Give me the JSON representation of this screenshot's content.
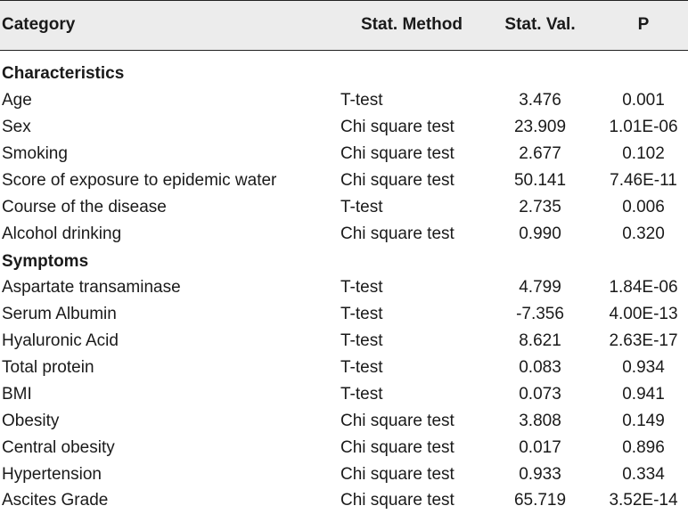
{
  "header": {
    "category": "Category",
    "method": "Stat. Method",
    "value": "Stat. Val.",
    "p": "P"
  },
  "sections": [
    {
      "title": "Characteristics",
      "rows": [
        {
          "category": "Age",
          "method": "T-test",
          "value": "3.476",
          "p": "0.001"
        },
        {
          "category": "Sex",
          "method": "Chi square test",
          "value": "23.909",
          "p": "1.01E-06"
        },
        {
          "category": "Smoking",
          "method": "Chi square test",
          "value": "2.677",
          "p": "0.102"
        },
        {
          "category": "Score of exposure to epidemic water",
          "method": "Chi square test",
          "value": "50.141",
          "p": "7.46E-11"
        },
        {
          "category": "Course of the disease",
          "method": "T-test",
          "value": "2.735",
          "p": "0.006"
        },
        {
          "category": "Alcohol drinking",
          "method": "Chi square test",
          "value": "0.990",
          "p": "0.320"
        }
      ]
    },
    {
      "title": "Symptoms",
      "rows": [
        {
          "category": "Aspartate transaminase",
          "method": "T-test",
          "value": "4.799",
          "p": "1.84E-06"
        },
        {
          "category": "Serum Albumin",
          "method": "T-test",
          "value": "-7.356",
          "p": "4.00E-13"
        },
        {
          "category": "Hyaluronic Acid",
          "method": "T-test",
          "value": "8.621",
          "p": "2.63E-17"
        },
        {
          "category": "Total protein",
          "method": "T-test",
          "value": "0.083",
          "p": "0.934"
        },
        {
          "category": "BMI",
          "method": "T-test",
          "value": "0.073",
          "p": "0.941"
        },
        {
          "category": "Obesity",
          "method": "Chi square test",
          "value": "3.808",
          "p": "0.149"
        },
        {
          "category": "Central obesity",
          "method": "Chi square test",
          "value": "0.017",
          "p": "0.896"
        },
        {
          "category": "Hypertension",
          "method": "Chi square test",
          "value": "0.933",
          "p": "0.334"
        },
        {
          "category": "Ascites Grade",
          "method": "Chi square test",
          "value": "65.719",
          "p": "3.52E-14"
        }
      ]
    }
  ]
}
